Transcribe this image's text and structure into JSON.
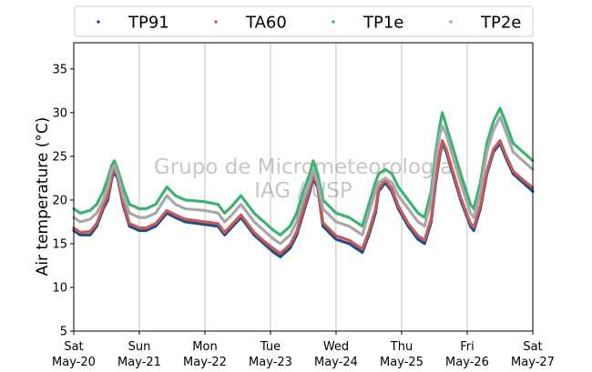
{
  "chart_data": {
    "type": "scatter",
    "ylabel": "Air temperature (°C)",
    "ylim": [
      5,
      38
    ],
    "yticks": [
      5,
      10,
      15,
      20,
      25,
      30,
      35
    ],
    "xlim": [
      0,
      7
    ],
    "xunit": "days since Sat May-20 00:00",
    "xticks": [
      {
        "day": 0,
        "weekday": "Sat",
        "date": "May-20"
      },
      {
        "day": 1,
        "weekday": "Sun",
        "date": "May-21"
      },
      {
        "day": 2,
        "weekday": "Mon",
        "date": "May-22"
      },
      {
        "day": 3,
        "weekday": "Tue",
        "date": "May-23"
      },
      {
        "day": 4,
        "weekday": "Wed",
        "date": "May-24"
      },
      {
        "day": 5,
        "weekday": "Thu",
        "date": "May-25"
      },
      {
        "day": 6,
        "weekday": "Fri",
        "date": "May-26"
      },
      {
        "day": 7,
        "weekday": "Sat",
        "date": "May-27"
      }
    ],
    "grid": "vertical",
    "legend_position": "top-outside",
    "watermark": [
      "Grupo de Micrometeorologia",
      "IAG / USP"
    ],
    "series": [
      {
        "name": "TP91",
        "color": "#1f4e8c",
        "points": [
          [
            0,
            16.5
          ],
          [
            0.1,
            16.0
          ],
          [
            0.25,
            16.0
          ],
          [
            0.35,
            17.0
          ],
          [
            0.45,
            19.0
          ],
          [
            0.52,
            20.0
          ],
          [
            0.58,
            22.5
          ],
          [
            0.62,
            23.2
          ],
          [
            0.67,
            22.5
          ],
          [
            0.75,
            19.5
          ],
          [
            0.85,
            17.0
          ],
          [
            1.0,
            16.5
          ],
          [
            1.1,
            16.5
          ],
          [
            1.25,
            17.0
          ],
          [
            1.42,
            18.5
          ],
          [
            1.55,
            18.0
          ],
          [
            1.7,
            17.5
          ],
          [
            2.0,
            17.2
          ],
          [
            2.2,
            17.0
          ],
          [
            2.3,
            16.0
          ],
          [
            2.4,
            16.8
          ],
          [
            2.55,
            18.0
          ],
          [
            2.65,
            17.0
          ],
          [
            2.75,
            16.0
          ],
          [
            2.9,
            15.0
          ],
          [
            3.05,
            14.0
          ],
          [
            3.15,
            13.5
          ],
          [
            3.3,
            14.5
          ],
          [
            3.4,
            16.0
          ],
          [
            3.5,
            18.5
          ],
          [
            3.6,
            21.0
          ],
          [
            3.65,
            22.5
          ],
          [
            3.72,
            21.5
          ],
          [
            3.8,
            17.0
          ],
          [
            4.0,
            15.5
          ],
          [
            4.2,
            15.0
          ],
          [
            4.3,
            14.5
          ],
          [
            4.4,
            14.0
          ],
          [
            4.5,
            16.0
          ],
          [
            4.6,
            18.5
          ],
          [
            4.65,
            21.0
          ],
          [
            4.75,
            22.0
          ],
          [
            4.85,
            21.0
          ],
          [
            4.95,
            19.0
          ],
          [
            5.1,
            17.0
          ],
          [
            5.25,
            15.5
          ],
          [
            5.35,
            15.0
          ],
          [
            5.45,
            17.5
          ],
          [
            5.52,
            22.0
          ],
          [
            5.58,
            25.0
          ],
          [
            5.62,
            26.5
          ],
          [
            5.68,
            25.5
          ],
          [
            5.78,
            23.0
          ],
          [
            5.9,
            20.0
          ],
          [
            6.05,
            17.0
          ],
          [
            6.1,
            16.5
          ],
          [
            6.2,
            19.0
          ],
          [
            6.3,
            23.0
          ],
          [
            6.4,
            25.5
          ],
          [
            6.5,
            26.5
          ],
          [
            6.58,
            25.0
          ],
          [
            6.7,
            23.0
          ],
          [
            6.85,
            22.0
          ],
          [
            7.0,
            21.0
          ]
        ]
      },
      {
        "name": "TA60",
        "color": "#c85a5a",
        "points": [
          [
            0,
            16.8
          ],
          [
            0.1,
            16.3
          ],
          [
            0.25,
            16.4
          ],
          [
            0.35,
            17.3
          ],
          [
            0.45,
            19.3
          ],
          [
            0.52,
            20.5
          ],
          [
            0.58,
            22.8
          ],
          [
            0.62,
            23.5
          ],
          [
            0.67,
            22.8
          ],
          [
            0.75,
            19.8
          ],
          [
            0.85,
            17.3
          ],
          [
            1.0,
            16.8
          ],
          [
            1.1,
            16.8
          ],
          [
            1.25,
            17.3
          ],
          [
            1.42,
            18.8
          ],
          [
            1.55,
            18.3
          ],
          [
            1.7,
            17.8
          ],
          [
            2.0,
            17.5
          ],
          [
            2.2,
            17.3
          ],
          [
            2.3,
            16.3
          ],
          [
            2.4,
            17.1
          ],
          [
            2.55,
            18.3
          ],
          [
            2.65,
            17.3
          ],
          [
            2.75,
            16.3
          ],
          [
            2.9,
            15.3
          ],
          [
            3.05,
            14.4
          ],
          [
            3.15,
            13.9
          ],
          [
            3.3,
            14.9
          ],
          [
            3.4,
            16.4
          ],
          [
            3.5,
            18.9
          ],
          [
            3.6,
            21.4
          ],
          [
            3.65,
            22.8
          ],
          [
            3.72,
            21.8
          ],
          [
            3.8,
            17.4
          ],
          [
            4.0,
            15.9
          ],
          [
            4.2,
            15.4
          ],
          [
            4.3,
            14.9
          ],
          [
            4.4,
            14.4
          ],
          [
            4.5,
            16.4
          ],
          [
            4.6,
            18.9
          ],
          [
            4.65,
            21.3
          ],
          [
            4.75,
            22.3
          ],
          [
            4.85,
            21.3
          ],
          [
            4.95,
            19.3
          ],
          [
            5.1,
            17.3
          ],
          [
            5.25,
            15.9
          ],
          [
            5.35,
            15.4
          ],
          [
            5.45,
            17.9
          ],
          [
            5.52,
            22.4
          ],
          [
            5.58,
            25.3
          ],
          [
            5.62,
            26.8
          ],
          [
            5.68,
            25.8
          ],
          [
            5.78,
            23.3
          ],
          [
            5.9,
            20.3
          ],
          [
            6.05,
            17.3
          ],
          [
            6.1,
            16.9
          ],
          [
            6.2,
            19.4
          ],
          [
            6.3,
            23.3
          ],
          [
            6.4,
            25.8
          ],
          [
            6.5,
            26.8
          ],
          [
            6.58,
            25.3
          ],
          [
            6.7,
            23.3
          ],
          [
            6.85,
            22.3
          ],
          [
            7.0,
            21.4
          ]
        ]
      },
      {
        "name": "TP1e",
        "color": "#3cb371",
        "points": [
          [
            0,
            19.0
          ],
          [
            0.1,
            18.5
          ],
          [
            0.25,
            18.8
          ],
          [
            0.35,
            19.5
          ],
          [
            0.45,
            21.0
          ],
          [
            0.52,
            22.5
          ],
          [
            0.58,
            24.0
          ],
          [
            0.62,
            24.5
          ],
          [
            0.67,
            23.5
          ],
          [
            0.75,
            21.5
          ],
          [
            0.85,
            19.5
          ],
          [
            1.0,
            19.0
          ],
          [
            1.1,
            19.0
          ],
          [
            1.25,
            19.5
          ],
          [
            1.42,
            21.5
          ],
          [
            1.55,
            20.5
          ],
          [
            1.7,
            20.0
          ],
          [
            2.0,
            19.8
          ],
          [
            2.2,
            19.5
          ],
          [
            2.3,
            18.5
          ],
          [
            2.4,
            19.2
          ],
          [
            2.55,
            20.5
          ],
          [
            2.65,
            19.5
          ],
          [
            2.75,
            18.5
          ],
          [
            2.9,
            17.5
          ],
          [
            3.05,
            16.5
          ],
          [
            3.15,
            16.0
          ],
          [
            3.3,
            17.0
          ],
          [
            3.4,
            18.5
          ],
          [
            3.5,
            21.0
          ],
          [
            3.6,
            23.0
          ],
          [
            3.65,
            24.5
          ],
          [
            3.72,
            23.0
          ],
          [
            3.8,
            20.0
          ],
          [
            4.0,
            18.5
          ],
          [
            4.2,
            18.0
          ],
          [
            4.3,
            17.5
          ],
          [
            4.4,
            17.0
          ],
          [
            4.5,
            19.5
          ],
          [
            4.6,
            22.0
          ],
          [
            4.65,
            23.0
          ],
          [
            4.75,
            23.5
          ],
          [
            4.85,
            23.0
          ],
          [
            4.95,
            21.5
          ],
          [
            5.1,
            20.0
          ],
          [
            5.25,
            18.5
          ],
          [
            5.35,
            18.0
          ],
          [
            5.45,
            21.0
          ],
          [
            5.52,
            25.5
          ],
          [
            5.58,
            28.5
          ],
          [
            5.62,
            30.0
          ],
          [
            5.68,
            28.5
          ],
          [
            5.78,
            26.0
          ],
          [
            5.9,
            23.0
          ],
          [
            6.05,
            19.5
          ],
          [
            6.1,
            19.0
          ],
          [
            6.2,
            22.0
          ],
          [
            6.3,
            26.5
          ],
          [
            6.4,
            29.0
          ],
          [
            6.5,
            30.5
          ],
          [
            6.58,
            29.0
          ],
          [
            6.7,
            26.5
          ],
          [
            6.85,
            25.5
          ],
          [
            7.0,
            24.5
          ]
        ]
      },
      {
        "name": "TP2e",
        "color": "#a8a8a8",
        "points": [
          [
            0,
            18.0
          ],
          [
            0.1,
            17.5
          ],
          [
            0.25,
            17.8
          ],
          [
            0.35,
            18.5
          ],
          [
            0.45,
            20.0
          ],
          [
            0.52,
            21.5
          ],
          [
            0.58,
            23.5
          ],
          [
            0.62,
            24.0
          ],
          [
            0.67,
            23.0
          ],
          [
            0.75,
            20.5
          ],
          [
            0.85,
            18.5
          ],
          [
            1.0,
            18.0
          ],
          [
            1.1,
            18.0
          ],
          [
            1.25,
            18.5
          ],
          [
            1.42,
            20.5
          ],
          [
            1.55,
            19.5
          ],
          [
            1.7,
            19.0
          ],
          [
            2.0,
            18.8
          ],
          [
            2.2,
            18.5
          ],
          [
            2.3,
            17.5
          ],
          [
            2.4,
            18.2
          ],
          [
            2.55,
            19.5
          ],
          [
            2.65,
            18.5
          ],
          [
            2.75,
            17.5
          ],
          [
            2.9,
            16.5
          ],
          [
            3.05,
            15.5
          ],
          [
            3.15,
            15.0
          ],
          [
            3.3,
            16.0
          ],
          [
            3.4,
            17.5
          ],
          [
            3.5,
            20.0
          ],
          [
            3.6,
            22.0
          ],
          [
            3.65,
            23.5
          ],
          [
            3.72,
            22.0
          ],
          [
            3.8,
            19.0
          ],
          [
            4.0,
            17.5
          ],
          [
            4.2,
            17.0
          ],
          [
            4.3,
            16.5
          ],
          [
            4.4,
            16.0
          ],
          [
            4.5,
            18.5
          ],
          [
            4.6,
            21.0
          ],
          [
            4.65,
            22.0
          ],
          [
            4.75,
            22.5
          ],
          [
            4.85,
            22.0
          ],
          [
            4.95,
            20.5
          ],
          [
            5.1,
            19.0
          ],
          [
            5.25,
            17.5
          ],
          [
            5.35,
            17.0
          ],
          [
            5.45,
            20.0
          ],
          [
            5.52,
            24.5
          ],
          [
            5.58,
            27.5
          ],
          [
            5.62,
            28.5
          ],
          [
            5.68,
            27.5
          ],
          [
            5.78,
            25.0
          ],
          [
            5.9,
            22.0
          ],
          [
            6.05,
            18.5
          ],
          [
            6.1,
            18.0
          ],
          [
            6.2,
            21.0
          ],
          [
            6.3,
            25.5
          ],
          [
            6.4,
            28.0
          ],
          [
            6.5,
            29.5
          ],
          [
            6.58,
            28.0
          ],
          [
            6.7,
            25.5
          ],
          [
            6.85,
            24.5
          ],
          [
            7.0,
            23.5
          ]
        ]
      }
    ]
  }
}
